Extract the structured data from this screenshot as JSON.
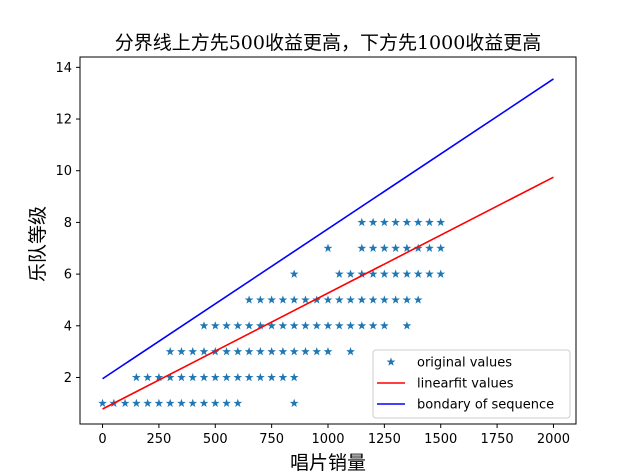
{
  "chart_data": {
    "type": "scatter",
    "title": "分界线上方先500收益更高，下方先1000收益更高",
    "xlabel": "唱片销量",
    "ylabel": "乐队等级",
    "xlim": [
      -100,
      2100
    ],
    "ylim": [
      0.2,
      14.4
    ],
    "xticks": [
      0,
      250,
      500,
      750,
      1000,
      1250,
      1500,
      1750,
      2000
    ],
    "yticks": [
      2,
      4,
      6,
      8,
      10,
      12,
      14
    ],
    "grid": false,
    "legend_position": "lower-right",
    "points_by_level": [
      {
        "y": 1,
        "x": [
          0,
          50,
          100,
          150,
          200,
          250,
          300,
          350,
          400,
          450,
          500,
          550,
          600,
          850
        ]
      },
      {
        "y": 2,
        "x": [
          150,
          200,
          250,
          300,
          350,
          400,
          450,
          500,
          550,
          600,
          650,
          700,
          750,
          800,
          850
        ]
      },
      {
        "y": 3,
        "x": [
          300,
          350,
          400,
          450,
          500,
          550,
          600,
          650,
          700,
          750,
          800,
          850,
          900,
          950,
          1000,
          1100
        ]
      },
      {
        "y": 4,
        "x": [
          450,
          500,
          550,
          600,
          650,
          700,
          750,
          800,
          850,
          900,
          950,
          1000,
          1050,
          1100,
          1150,
          1200,
          1250,
          1350
        ]
      },
      {
        "y": 5,
        "x": [
          650,
          700,
          750,
          800,
          850,
          900,
          950,
          1000,
          1050,
          1100,
          1150,
          1200,
          1250,
          1300,
          1350,
          1400
        ]
      },
      {
        "y": 6,
        "x": [
          850,
          1050,
          1100,
          1150,
          1200,
          1250,
          1300,
          1350,
          1400,
          1450,
          1500
        ]
      },
      {
        "y": 7,
        "x": [
          1000,
          1150,
          1200,
          1250,
          1300,
          1350,
          1400,
          1450,
          1500
        ]
      },
      {
        "y": 8,
        "x": [
          1150,
          1200,
          1250,
          1300,
          1350,
          1400,
          1450,
          1500
        ]
      }
    ],
    "series": [
      {
        "name": "original values",
        "kind": "points",
        "color": "#1f77b4",
        "marker": "star"
      },
      {
        "name": "linearfit values",
        "kind": "line",
        "color": "#ff0000",
        "x": [
          0,
          2000
        ],
        "y": [
          0.78,
          9.75
        ]
      },
      {
        "name": "bondary of sequence",
        "kind": "line",
        "color": "#0000ff",
        "x": [
          0,
          2000
        ],
        "y": [
          1.95,
          13.55
        ]
      }
    ]
  }
}
